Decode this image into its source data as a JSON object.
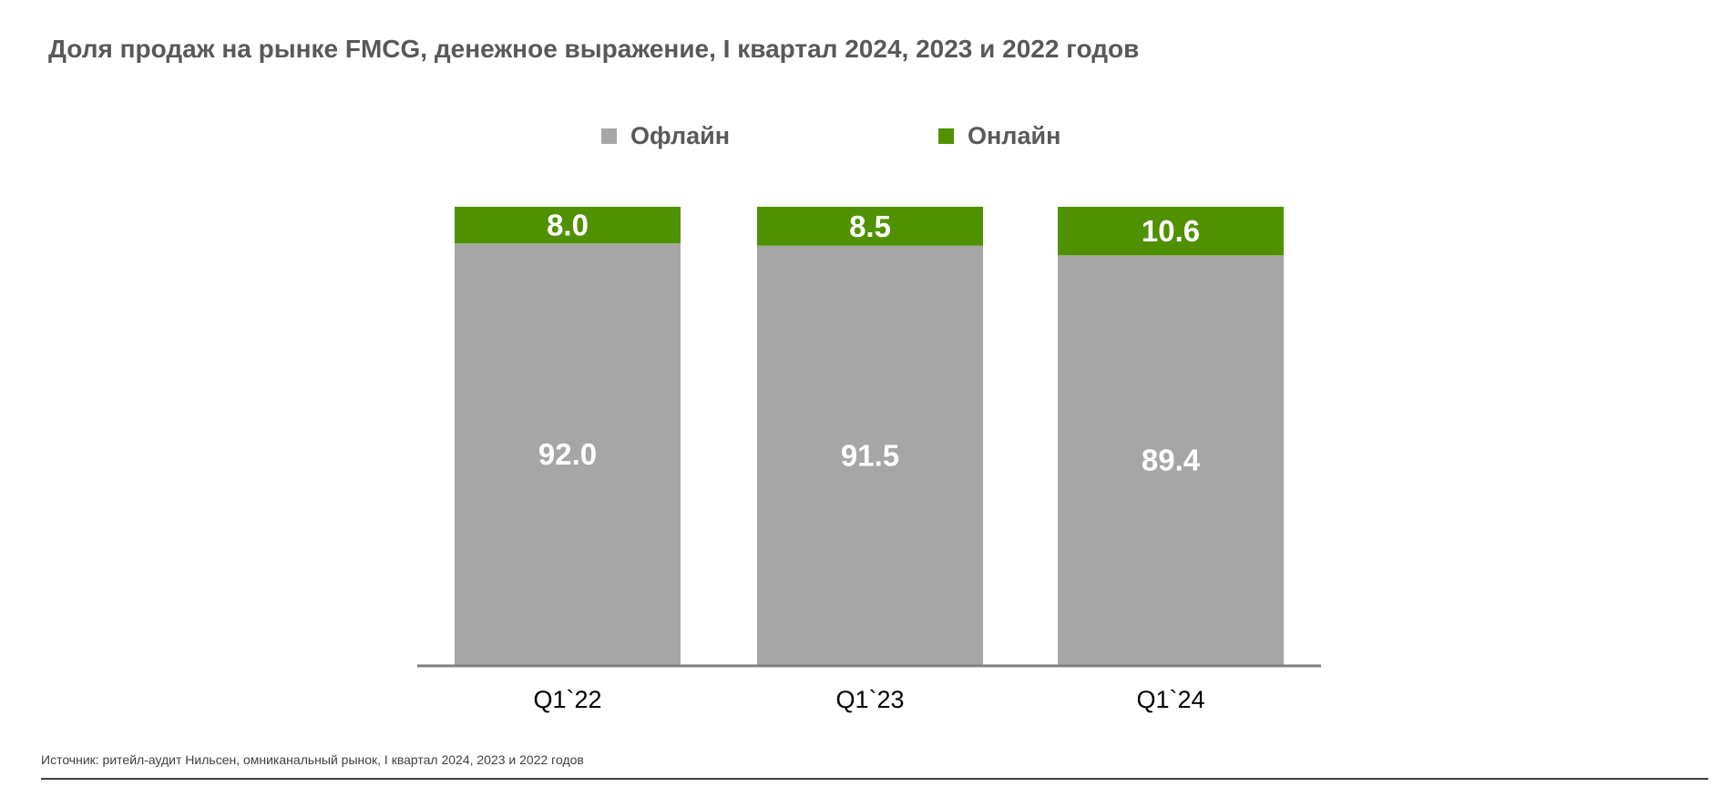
{
  "chart_data": {
    "type": "bar",
    "stacked": true,
    "title": "Доля продаж на рынке FMCG, денежное выражение, I квартал 2024, 2023 и 2022 годов",
    "categories": [
      "Q1`22",
      "Q1`23",
      "Q1`24"
    ],
    "series": [
      {
        "name": "Офлайн",
        "values": [
          92.0,
          91.5,
          89.4
        ],
        "labels": [
          "92.0",
          "91.5",
          "89.4"
        ],
        "color": "#a6a6a6"
      },
      {
        "name": "Онлайн",
        "values": [
          8.0,
          8.5,
          10.6
        ],
        "labels": [
          "8.0",
          "8.5",
          "10.6"
        ],
        "color": "#4f9100"
      }
    ],
    "xlabel": "",
    "ylabel": "",
    "ylim": [
      0,
      100
    ],
    "grid": false,
    "legend_position": "top-center",
    "data_label_color": "#ffffff",
    "axis_color": "#7f7f7f"
  },
  "source_text": "Источник: ритейл-аудит Нильсен, омниканальный рынок, I квартал 2024, 2023 и 2022 годов"
}
